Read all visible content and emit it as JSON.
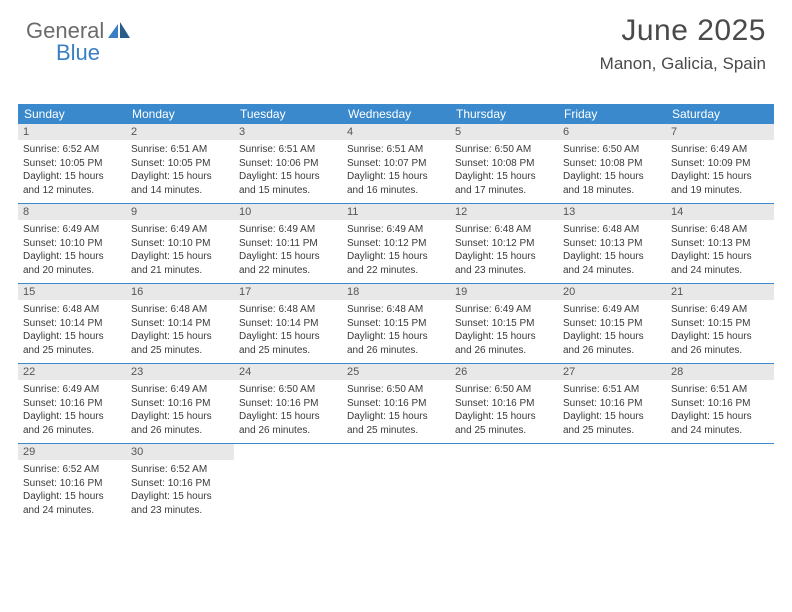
{
  "logo": {
    "part1": "General",
    "part2": "Blue"
  },
  "title": "June 2025",
  "location": "Manon, Galicia, Spain",
  "colors": {
    "header_bg": "#3a89cc",
    "header_text": "#ffffff",
    "daynum_bg": "#e8e8e8",
    "border": "#3a89cc",
    "text": "#3a3a3a",
    "logo_gray": "#6b6b6b",
    "logo_blue": "#3a7fc4"
  },
  "dayLabels": [
    "Sunday",
    "Monday",
    "Tuesday",
    "Wednesday",
    "Thursday",
    "Friday",
    "Saturday"
  ],
  "weeks": [
    [
      {
        "n": "1",
        "r": "6:52 AM",
        "s": "10:05 PM",
        "d": "15 hours and 12 minutes."
      },
      {
        "n": "2",
        "r": "6:51 AM",
        "s": "10:05 PM",
        "d": "15 hours and 14 minutes."
      },
      {
        "n": "3",
        "r": "6:51 AM",
        "s": "10:06 PM",
        "d": "15 hours and 15 minutes."
      },
      {
        "n": "4",
        "r": "6:51 AM",
        "s": "10:07 PM",
        "d": "15 hours and 16 minutes."
      },
      {
        "n": "5",
        "r": "6:50 AM",
        "s": "10:08 PM",
        "d": "15 hours and 17 minutes."
      },
      {
        "n": "6",
        "r": "6:50 AM",
        "s": "10:08 PM",
        "d": "15 hours and 18 minutes."
      },
      {
        "n": "7",
        "r": "6:49 AM",
        "s": "10:09 PM",
        "d": "15 hours and 19 minutes."
      }
    ],
    [
      {
        "n": "8",
        "r": "6:49 AM",
        "s": "10:10 PM",
        "d": "15 hours and 20 minutes."
      },
      {
        "n": "9",
        "r": "6:49 AM",
        "s": "10:10 PM",
        "d": "15 hours and 21 minutes."
      },
      {
        "n": "10",
        "r": "6:49 AM",
        "s": "10:11 PM",
        "d": "15 hours and 22 minutes."
      },
      {
        "n": "11",
        "r": "6:49 AM",
        "s": "10:12 PM",
        "d": "15 hours and 22 minutes."
      },
      {
        "n": "12",
        "r": "6:48 AM",
        "s": "10:12 PM",
        "d": "15 hours and 23 minutes."
      },
      {
        "n": "13",
        "r": "6:48 AM",
        "s": "10:13 PM",
        "d": "15 hours and 24 minutes."
      },
      {
        "n": "14",
        "r": "6:48 AM",
        "s": "10:13 PM",
        "d": "15 hours and 24 minutes."
      }
    ],
    [
      {
        "n": "15",
        "r": "6:48 AM",
        "s": "10:14 PM",
        "d": "15 hours and 25 minutes."
      },
      {
        "n": "16",
        "r": "6:48 AM",
        "s": "10:14 PM",
        "d": "15 hours and 25 minutes."
      },
      {
        "n": "17",
        "r": "6:48 AM",
        "s": "10:14 PM",
        "d": "15 hours and 25 minutes."
      },
      {
        "n": "18",
        "r": "6:48 AM",
        "s": "10:15 PM",
        "d": "15 hours and 26 minutes."
      },
      {
        "n": "19",
        "r": "6:49 AM",
        "s": "10:15 PM",
        "d": "15 hours and 26 minutes."
      },
      {
        "n": "20",
        "r": "6:49 AM",
        "s": "10:15 PM",
        "d": "15 hours and 26 minutes."
      },
      {
        "n": "21",
        "r": "6:49 AM",
        "s": "10:15 PM",
        "d": "15 hours and 26 minutes."
      }
    ],
    [
      {
        "n": "22",
        "r": "6:49 AM",
        "s": "10:16 PM",
        "d": "15 hours and 26 minutes."
      },
      {
        "n": "23",
        "r": "6:49 AM",
        "s": "10:16 PM",
        "d": "15 hours and 26 minutes."
      },
      {
        "n": "24",
        "r": "6:50 AM",
        "s": "10:16 PM",
        "d": "15 hours and 26 minutes."
      },
      {
        "n": "25",
        "r": "6:50 AM",
        "s": "10:16 PM",
        "d": "15 hours and 25 minutes."
      },
      {
        "n": "26",
        "r": "6:50 AM",
        "s": "10:16 PM",
        "d": "15 hours and 25 minutes."
      },
      {
        "n": "27",
        "r": "6:51 AM",
        "s": "10:16 PM",
        "d": "15 hours and 25 minutes."
      },
      {
        "n": "28",
        "r": "6:51 AM",
        "s": "10:16 PM",
        "d": "15 hours and 24 minutes."
      }
    ],
    [
      {
        "n": "29",
        "r": "6:52 AM",
        "s": "10:16 PM",
        "d": "15 hours and 24 minutes."
      },
      {
        "n": "30",
        "r": "6:52 AM",
        "s": "10:16 PM",
        "d": "15 hours and 23 minutes."
      },
      null,
      null,
      null,
      null,
      null
    ]
  ],
  "labels": {
    "sunrise": "Sunrise:",
    "sunset": "Sunset:",
    "daylight": "Daylight:"
  }
}
